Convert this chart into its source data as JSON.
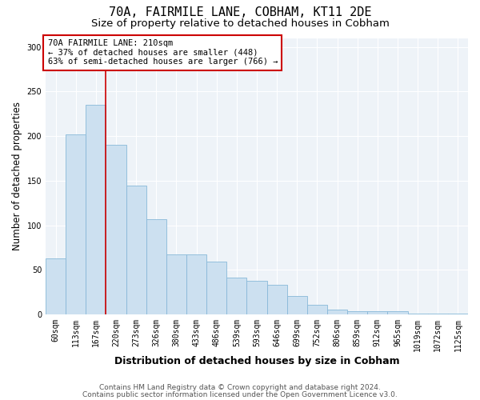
{
  "title": "70A, FAIRMILE LANE, COBHAM, KT11 2DE",
  "subtitle": "Size of property relative to detached houses in Cobham",
  "xlabel": "Distribution of detached houses by size in Cobham",
  "ylabel": "Number of detached properties",
  "categories": [
    "60sqm",
    "113sqm",
    "167sqm",
    "220sqm",
    "273sqm",
    "326sqm",
    "380sqm",
    "433sqm",
    "486sqm",
    "539sqm",
    "593sqm",
    "646sqm",
    "699sqm",
    "752sqm",
    "806sqm",
    "859sqm",
    "912sqm",
    "965sqm",
    "1019sqm",
    "1072sqm",
    "1125sqm"
  ],
  "values": [
    63,
    202,
    235,
    190,
    144,
    107,
    67,
    67,
    59,
    41,
    38,
    33,
    21,
    11,
    5,
    4,
    4,
    4,
    1,
    1,
    1
  ],
  "bar_color": "#cce0f0",
  "bar_edge_color": "#88b8d8",
  "marker_label": "70A FAIRMILE LANE: 210sqm",
  "annotation_line1": "← 37% of detached houses are smaller (448)",
  "annotation_line2": "63% of semi-detached houses are larger (766) →",
  "annotation_box_color": "#ffffff",
  "annotation_box_edge": "#cc0000",
  "vline_color": "#cc0000",
  "footer1": "Contains HM Land Registry data © Crown copyright and database right 2024.",
  "footer2": "Contains public sector information licensed under the Open Government Licence v3.0.",
  "ylim": [
    0,
    310
  ],
  "yticks": [
    0,
    50,
    100,
    150,
    200,
    250,
    300
  ],
  "bg_color": "#ffffff",
  "plot_bg_color": "#eef3f8",
  "title_fontsize": 11,
  "subtitle_fontsize": 9.5,
  "xlabel_fontsize": 9,
  "ylabel_fontsize": 8.5,
  "tick_fontsize": 7,
  "annotation_fontsize": 7.5,
  "footer_fontsize": 6.5,
  "vline_bar_index": 2.5
}
